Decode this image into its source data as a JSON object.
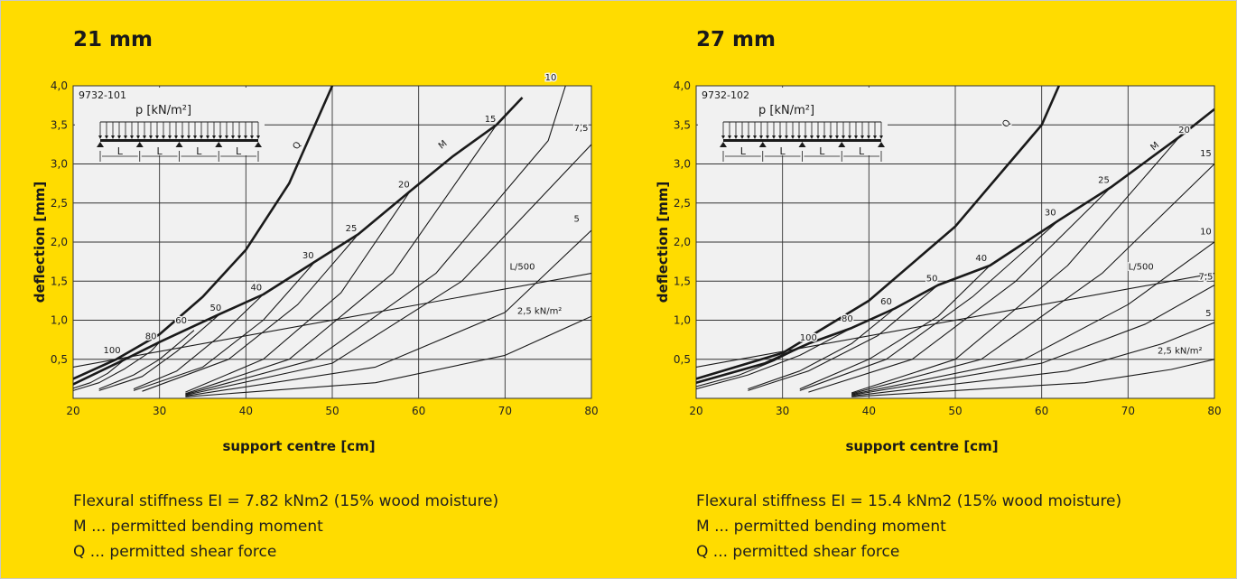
{
  "panels": [
    {
      "title": "21 mm",
      "code": "9732-101",
      "load_label": "p [kN/m²]",
      "span_label": "L",
      "notes": [
        "Flexural stiffness EI = 7.82 kNm2 (15% wood moisture)",
        "M ... permitted bending moment",
        "Q ... permitted shear force"
      ]
    },
    {
      "title": "27 mm",
      "code": "9732-102",
      "load_label": "p [kN/m²]",
      "span_label": "L",
      "notes": [
        "Flexural stiffness EI = 15.4 kNm2 (15% wood moisture)",
        "M ... permitted bending moment",
        "Q ... permitted shear force"
      ]
    }
  ],
  "chart_data": [
    {
      "type": "line",
      "xlabel": "support centre [cm]",
      "ylabel": "deflection [mm]",
      "xlim": [
        20,
        80
      ],
      "ylim": [
        0,
        4.0
      ],
      "x_ticks": [
        "20",
        "30",
        "40",
        "50",
        "60",
        "70",
        "80"
      ],
      "y_ticks": [
        "0,5",
        "1,0",
        "1,5",
        "2,0",
        "2,5",
        "3,0",
        "3,5",
        "4,0"
      ],
      "grid": true,
      "curves": [
        {
          "label": "Q",
          "bold": true,
          "points": [
            [
              20,
              0.25
            ],
            [
              25,
              0.5
            ],
            [
              30,
              0.82
            ],
            [
              35,
              1.3
            ],
            [
              40,
              1.9
            ],
            [
              45,
              2.75
            ],
            [
              50,
              4.0
            ]
          ]
        },
        {
          "label": "M",
          "bold": true,
          "points": [
            [
              20,
              0.18
            ],
            [
              26,
              0.5
            ],
            [
              30,
              0.72
            ],
            [
              37,
              1.08
            ],
            [
              42,
              1.33
            ],
            [
              48,
              1.75
            ],
            [
              53,
              2.1
            ],
            [
              59,
              2.65
            ],
            [
              64,
              3.1
            ],
            [
              69,
              3.5
            ],
            [
              72,
              3.85
            ]
          ]
        },
        {
          "label": "L/500",
          "bold": false,
          "points": [
            [
              20,
              0.4
            ],
            [
              80,
              1.6
            ]
          ]
        },
        {
          "label": "100",
          "bold": false,
          "points": [
            [
              20,
              0.13
            ],
            [
              22,
              0.2
            ],
            [
              24,
              0.32
            ],
            [
              26,
              0.5
            ]
          ]
        },
        {
          "label": "80",
          "bold": false,
          "points": [
            [
              20,
              0.1
            ],
            [
              23,
              0.2
            ],
            [
              26,
              0.38
            ],
            [
              29,
              0.6
            ],
            [
              30,
              0.72
            ]
          ]
        },
        {
          "label": "60",
          "bold": false,
          "points": [
            [
              23,
              0.12
            ],
            [
              27,
              0.3
            ],
            [
              30,
              0.5
            ],
            [
              34,
              0.87
            ]
          ]
        },
        {
          "label": "50",
          "bold": false,
          "points": [
            [
              23,
              0.1
            ],
            [
              28,
              0.28
            ],
            [
              32,
              0.6
            ],
            [
              37,
              1.08
            ]
          ]
        },
        {
          "label": "40",
          "bold": false,
          "points": [
            [
              27,
              0.12
            ],
            [
              32,
              0.35
            ],
            [
              37,
              0.8
            ],
            [
              42,
              1.33
            ]
          ]
        },
        {
          "label": "30",
          "bold": false,
          "points": [
            [
              27,
              0.1
            ],
            [
              35,
              0.4
            ],
            [
              42,
              1.0
            ],
            [
              48,
              1.75
            ]
          ]
        },
        {
          "label": "25",
          "bold": false,
          "points": [
            [
              28,
              0.09
            ],
            [
              38,
              0.5
            ],
            [
              46,
              1.2
            ],
            [
              53,
              2.1
            ]
          ]
        },
        {
          "label": "20",
          "bold": false,
          "points": [
            [
              33,
              0.08
            ],
            [
              42,
              0.5
            ],
            [
              51,
              1.35
            ],
            [
              59,
              2.65
            ]
          ]
        },
        {
          "label": "15",
          "bold": false,
          "points": [
            [
              33,
              0.06
            ],
            [
              45,
              0.5
            ],
            [
              57,
              1.6
            ],
            [
              69,
              3.5
            ]
          ]
        },
        {
          "label": "10",
          "bold": false,
          "points": [
            [
              33,
              0.05
            ],
            [
              48,
              0.5
            ],
            [
              62,
              1.6
            ],
            [
              75,
              3.3
            ],
            [
              77,
              4.0
            ]
          ]
        },
        {
          "label": "7,5",
          "bold": false,
          "points": [
            [
              33,
              0.04
            ],
            [
              50,
              0.45
            ],
            [
              65,
              1.5
            ],
            [
              80,
              3.25
            ]
          ]
        },
        {
          "label": "5",
          "bold": false,
          "points": [
            [
              33,
              0.03
            ],
            [
              55,
              0.4
            ],
            [
              70,
              1.1
            ],
            [
              80,
              2.15
            ]
          ]
        },
        {
          "label": "2,5 kN/m²",
          "bold": false,
          "points": [
            [
              33,
              0.02
            ],
            [
              55,
              0.2
            ],
            [
              70,
              0.55
            ],
            [
              80,
              1.05
            ]
          ]
        }
      ]
    },
    {
      "type": "line",
      "xlabel": "support centre [cm]",
      "ylabel": "deflection [mm]",
      "xlim": [
        20,
        80
      ],
      "ylim": [
        0,
        4.0
      ],
      "x_ticks": [
        "20",
        "30",
        "40",
        "50",
        "60",
        "70",
        "80"
      ],
      "y_ticks": [
        "0,5",
        "1,0",
        "1,5",
        "2,0",
        "2,5",
        "3,0",
        "3,5",
        "4,0"
      ],
      "grid": true,
      "curves": [
        {
          "label": "Q",
          "bold": true,
          "points": [
            [
              20,
              0.25
            ],
            [
              30,
              0.58
            ],
            [
              40,
              1.25
            ],
            [
              50,
              2.2
            ],
            [
              60,
              3.5
            ],
            [
              62,
              4.0
            ]
          ]
        },
        {
          "label": "M",
          "bold": true,
          "points": [
            [
              20,
              0.2
            ],
            [
              28,
              0.45
            ],
            [
              33,
              0.7
            ],
            [
              38,
              0.9
            ],
            [
              43,
              1.15
            ],
            [
              48,
              1.45
            ],
            [
              54,
              1.7
            ],
            [
              62,
              2.28
            ],
            [
              68,
              2.7
            ],
            [
              76,
              3.35
            ],
            [
              80,
              3.7
            ]
          ]
        },
        {
          "label": "L/500",
          "bold": false,
          "points": [
            [
              20,
              0.4
            ],
            [
              80,
              1.6
            ]
          ]
        },
        {
          "label": "100",
          "bold": false,
          "points": [
            [
              20,
              0.15
            ],
            [
              25,
              0.3
            ],
            [
              29,
              0.48
            ],
            [
              33,
              0.7
            ]
          ]
        },
        {
          "label": "80",
          "bold": false,
          "points": [
            [
              20,
              0.12
            ],
            [
              26,
              0.3
            ],
            [
              32,
              0.55
            ],
            [
              38,
              0.9
            ]
          ]
        },
        {
          "label": "60",
          "bold": false,
          "points": [
            [
              26,
              0.12
            ],
            [
              32,
              0.35
            ],
            [
              38,
              0.7
            ],
            [
              43,
              1.15
            ]
          ]
        },
        {
          "label": "50",
          "bold": false,
          "points": [
            [
              26,
              0.1
            ],
            [
              33,
              0.35
            ],
            [
              41,
              0.8
            ],
            [
              48,
              1.45
            ]
          ]
        },
        {
          "label": "40",
          "bold": false,
          "points": [
            [
              32,
              0.12
            ],
            [
              40,
              0.5
            ],
            [
              48,
              1.05
            ],
            [
              54,
              1.7
            ]
          ]
        },
        {
          "label": "30",
          "bold": false,
          "points": [
            [
              32,
              0.1
            ],
            [
              42,
              0.5
            ],
            [
              52,
              1.3
            ],
            [
              62,
              2.28
            ]
          ]
        },
        {
          "label": "25",
          "bold": false,
          "points": [
            [
              33,
              0.08
            ],
            [
              45,
              0.5
            ],
            [
              57,
              1.5
            ],
            [
              68,
              2.7
            ]
          ]
        },
        {
          "label": "20",
          "bold": false,
          "points": [
            [
              38,
              0.07
            ],
            [
              50,
              0.5
            ],
            [
              63,
              1.7
            ],
            [
              76,
              3.35
            ]
          ]
        },
        {
          "label": "15",
          "bold": false,
          "points": [
            [
              38,
              0.06
            ],
            [
              53,
              0.5
            ],
            [
              67,
              1.6
            ],
            [
              80,
              3.0
            ]
          ]
        },
        {
          "label": "10",
          "bold": false,
          "points": [
            [
              38,
              0.05
            ],
            [
              58,
              0.5
            ],
            [
              70,
              1.2
            ],
            [
              80,
              2.0
            ]
          ]
        },
        {
          "label": "7,5",
          "bold": false,
          "points": [
            [
              38,
              0.04
            ],
            [
              60,
              0.45
            ],
            [
              72,
              0.95
            ],
            [
              80,
              1.45
            ]
          ]
        },
        {
          "label": "5",
          "bold": false,
          "points": [
            [
              38,
              0.03
            ],
            [
              63,
              0.35
            ],
            [
              74,
              0.7
            ],
            [
              80,
              0.97
            ]
          ]
        },
        {
          "label": "2,5 kN/m²",
          "bold": false,
          "points": [
            [
              38,
              0.02
            ],
            [
              65,
              0.2
            ],
            [
              75,
              0.37
            ],
            [
              80,
              0.5
            ]
          ]
        }
      ]
    }
  ]
}
